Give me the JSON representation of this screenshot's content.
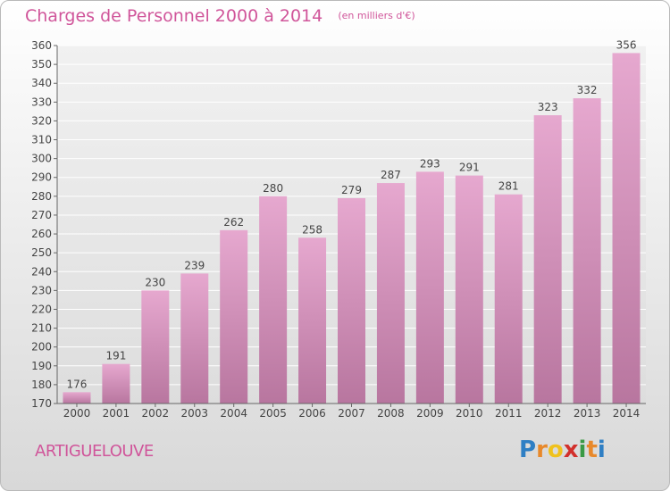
{
  "chart_data": {
    "type": "bar",
    "title": "Charges de Personnel 2000 à 2014",
    "subtitle": "(en milliers d'€)",
    "categories": [
      "2000",
      "2001",
      "2002",
      "2003",
      "2004",
      "2005",
      "2006",
      "2007",
      "2008",
      "2009",
      "2010",
      "2011",
      "2012",
      "2013",
      "2014"
    ],
    "values": [
      176,
      191,
      230,
      239,
      262,
      280,
      258,
      279,
      287,
      293,
      291,
      281,
      323,
      332,
      356
    ],
    "ylim": [
      170,
      360
    ],
    "yticks": [
      170,
      180,
      190,
      200,
      210,
      220,
      230,
      240,
      250,
      260,
      270,
      280,
      290,
      300,
      310,
      320,
      330,
      340,
      350,
      360
    ],
    "grid": true,
    "bar_color_top": "#e6a8cf",
    "bar_color_bottom": "#b8769f",
    "grid_color": "#ffffff"
  },
  "footer": {
    "commune": "ARTIGUELOUVE",
    "logo_letters": [
      "P",
      "r",
      "o",
      "x",
      "i",
      "t",
      "i"
    ],
    "logo_colors": [
      "#2f7fc4",
      "#e8892b",
      "#f0c21d",
      "#d2302c",
      "#3a9a45",
      "#e8892b",
      "#2f7fc4"
    ]
  },
  "colors": {
    "accent": "#d0559a"
  }
}
